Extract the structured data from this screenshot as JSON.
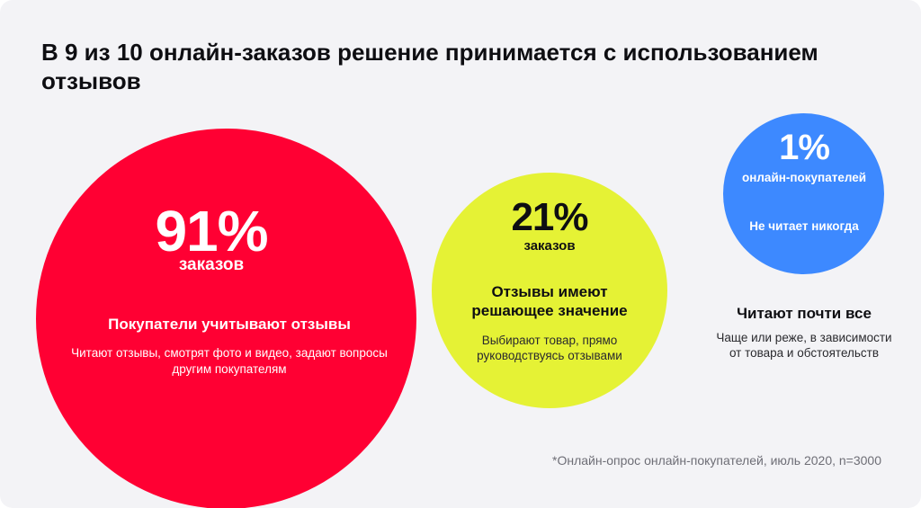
{
  "title": "В 9 из 10 онлайн-заказов решение принимается с использованием отзывов",
  "colors": {
    "background": "#f3f3f6",
    "red": "#ff0033",
    "yellow": "#e5f235",
    "blue": "#3d89ff"
  },
  "groups": [
    {
      "id": "red",
      "percent": "91%",
      "unit": "заказов",
      "heading": "Покупатели учитывают отзывы",
      "description": "Читают отзывы, смотрят фото и видео, задают вопросы другим покупателям"
    },
    {
      "id": "yellow",
      "percent": "21%",
      "unit": "заказов",
      "heading": "Отзывы имеют решающее значение",
      "description": "Выбирают товар, прямо руководствуясь отзывами"
    },
    {
      "id": "blue",
      "percent": "1%",
      "unit": "онлайн-покупателей",
      "note": "Не читает никогда",
      "heading": "Читают почти все",
      "description": "Чаще или реже, в зависимости от товара и обстоятельств"
    }
  ],
  "footnote": "*Онлайн-опрос онлайн-покупателей, июль 2020, n=3000"
}
